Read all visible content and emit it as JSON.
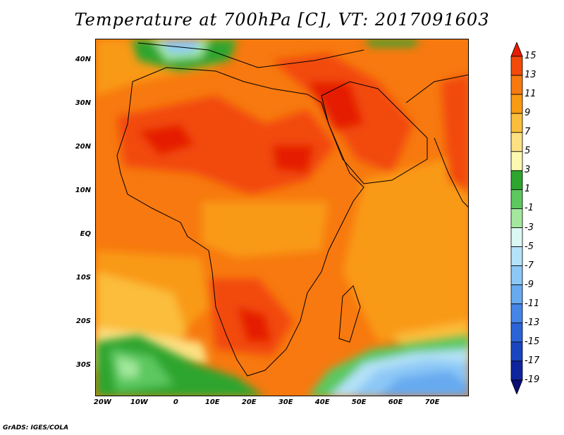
{
  "title": "Temperature at 700hPa [C], VT: 2017091603",
  "credit": "GrADS: IGES/COLA",
  "map": {
    "lon_range": [
      -22,
      80
    ],
    "lat_range": [
      -37,
      45
    ],
    "y_axis_labels": [
      {
        "text": "40N",
        "lat": 40
      },
      {
        "text": "30N",
        "lat": 30
      },
      {
        "text": "20N",
        "lat": 20
      },
      {
        "text": "10N",
        "lat": 10
      },
      {
        "text": "EQ",
        "lat": 0
      },
      {
        "text": "10S",
        "lat": -10
      },
      {
        "text": "20S",
        "lat": -20
      },
      {
        "text": "30S",
        "lat": -30
      }
    ],
    "x_axis_labels": [
      {
        "text": "20W",
        "lon": -20
      },
      {
        "text": "10W",
        "lon": -10
      },
      {
        "text": "0",
        "lon": 0
      },
      {
        "text": "10E",
        "lon": 10
      },
      {
        "text": "20E",
        "lon": 20
      },
      {
        "text": "30E",
        "lon": 30
      },
      {
        "text": "40E",
        "lon": 40
      },
      {
        "text": "50E",
        "lon": 50
      },
      {
        "text": "60E",
        "lon": 60
      },
      {
        "text": "70E",
        "lon": 70
      }
    ]
  },
  "colorbar": {
    "labels": [
      "15",
      "13",
      "11",
      "9",
      "7",
      "5",
      "3",
      "1",
      "-1",
      "-3",
      "-5",
      "-7",
      "-9",
      "-11",
      "-13",
      "-15",
      "-17",
      "-19"
    ],
    "colors": [
      "#e51d02",
      "#f24a0a",
      "#f7790f",
      "#f99a13",
      "#fbbd3b",
      "#fde081",
      "#fdf8af",
      "#2da52e",
      "#5cc85f",
      "#a3e89e",
      "#dbf8f2",
      "#b4e2f8",
      "#8cc8f6",
      "#68aaf0",
      "#4485e6",
      "#2b64d7",
      "#1a45c0",
      "#0f259e",
      "#0b0f73"
    ]
  }
}
